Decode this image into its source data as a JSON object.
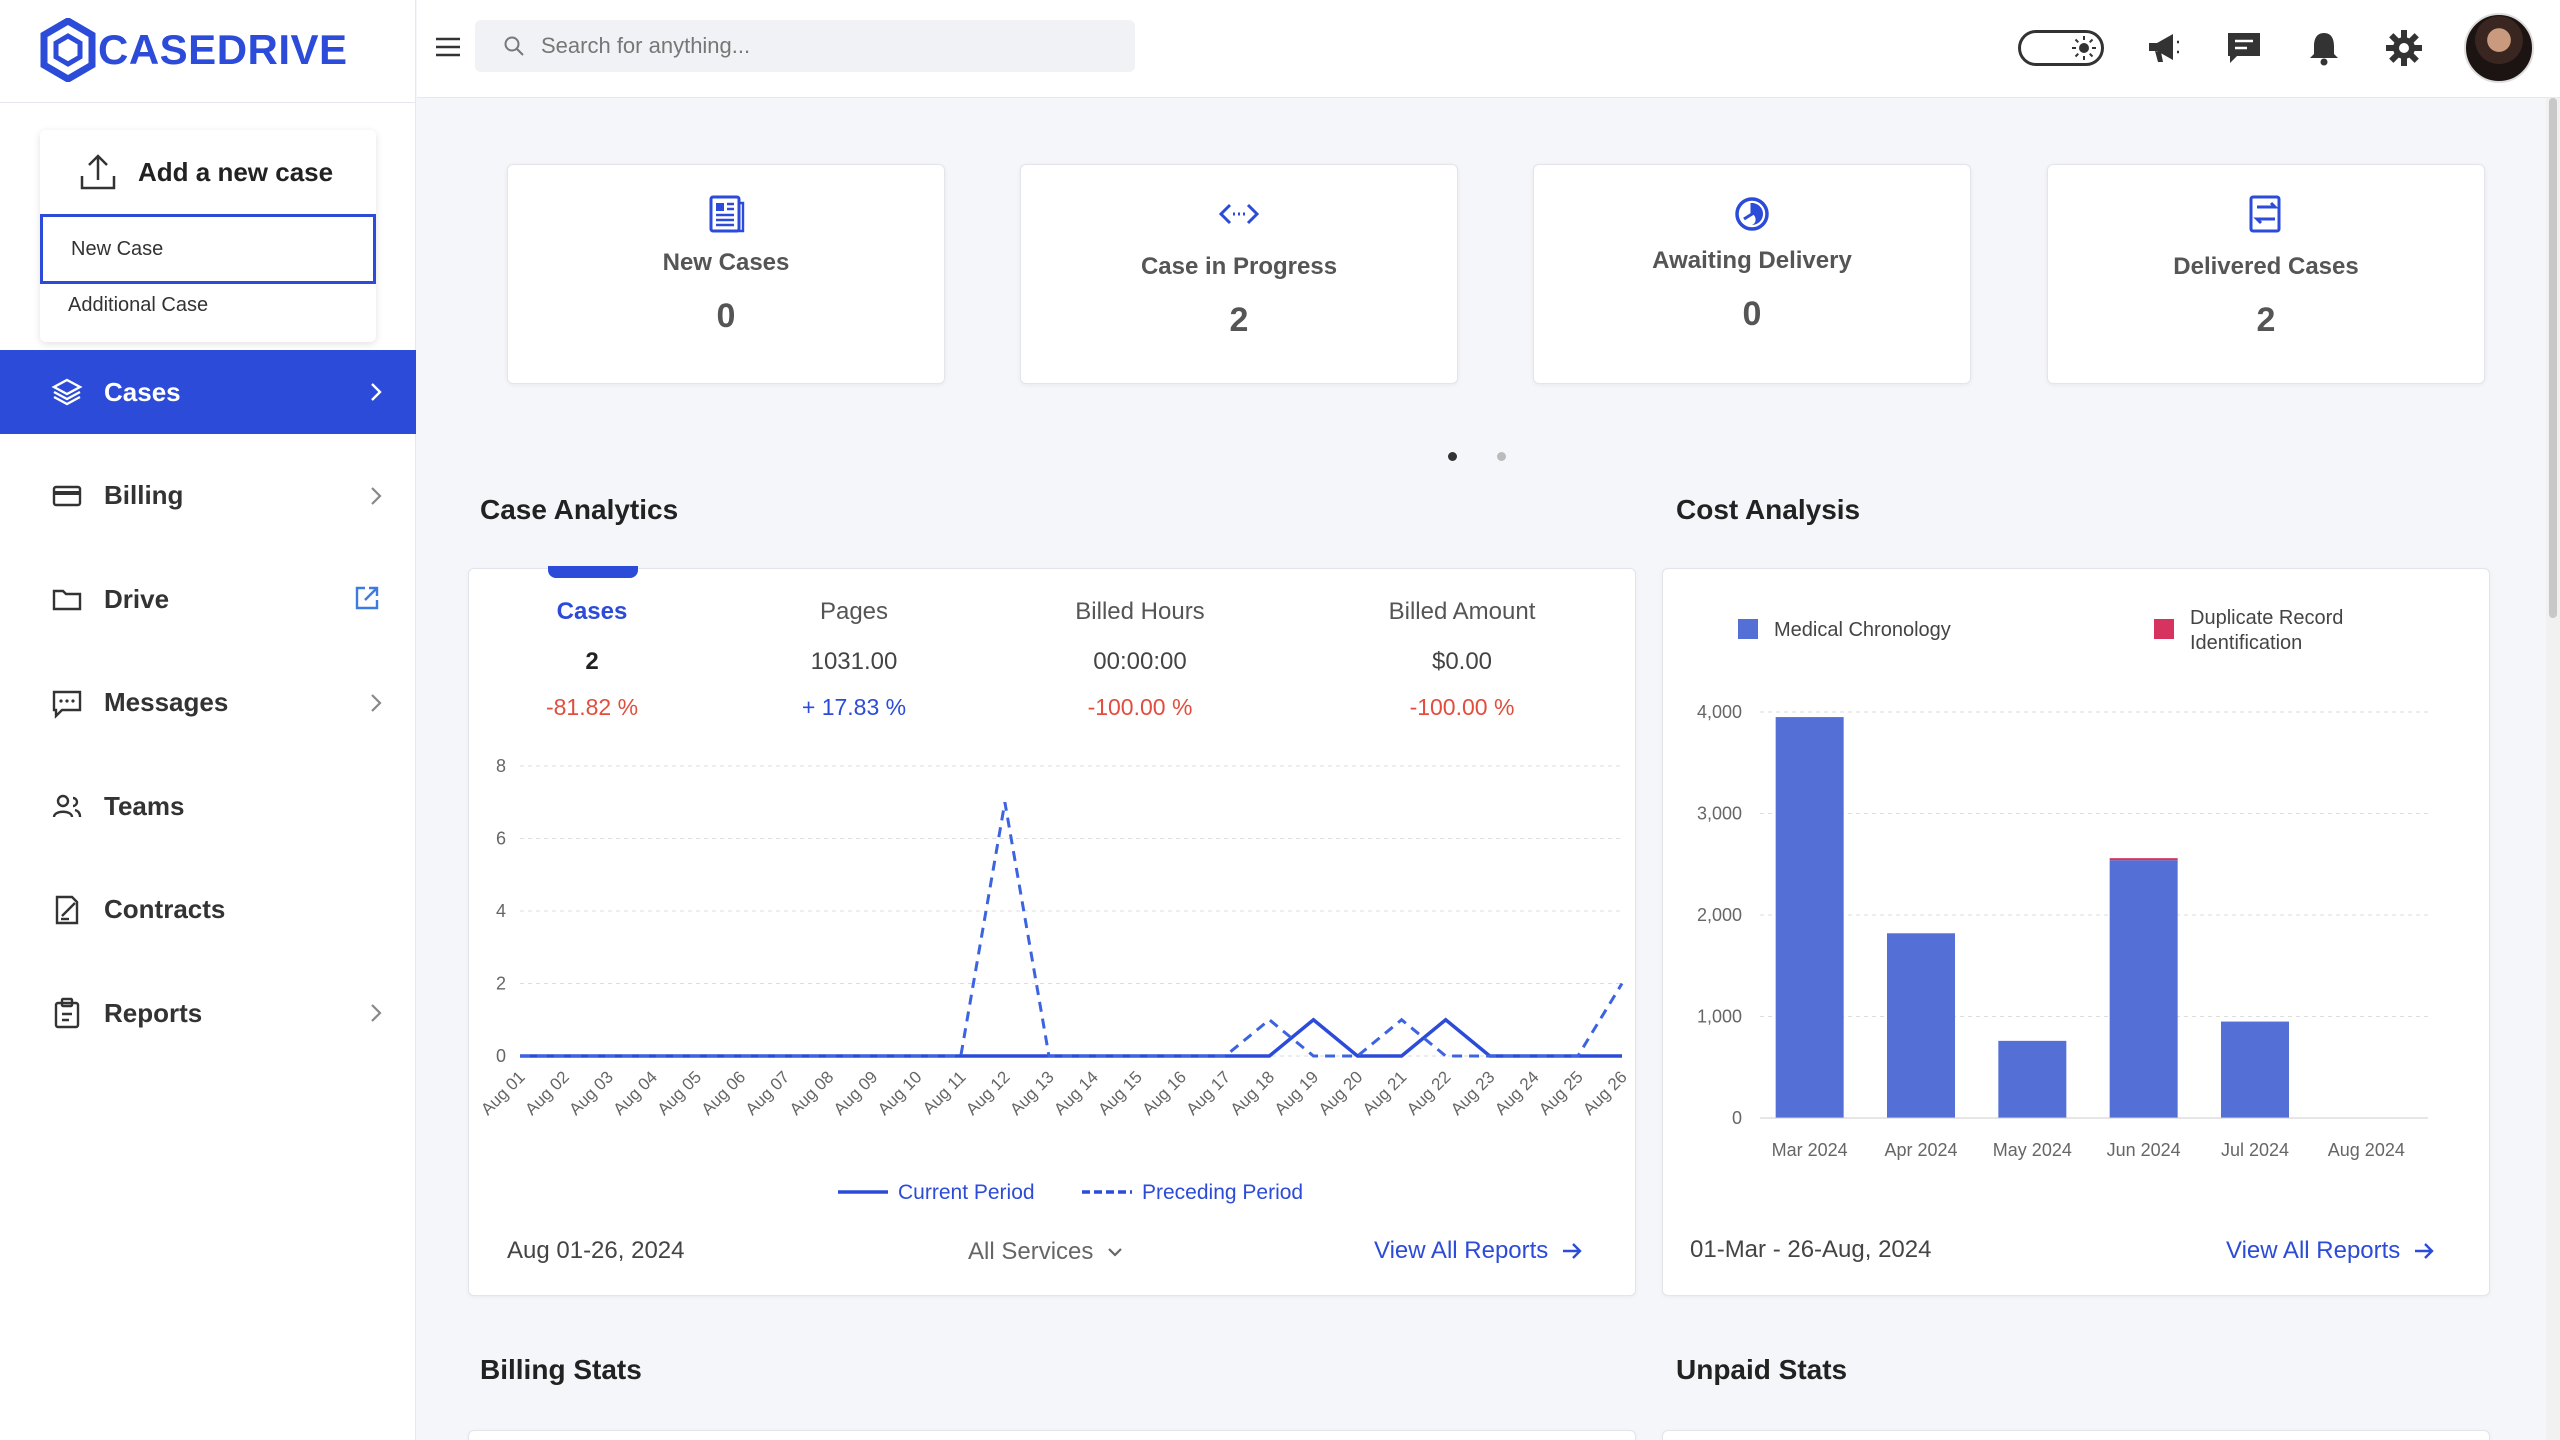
{
  "brand": {
    "name": "CASEDRIVE"
  },
  "add_case": {
    "title": "Add a new case",
    "options": [
      "New Case",
      "Additional Case"
    ]
  },
  "nav": [
    {
      "label": "Cases",
      "icon": "layers-icon",
      "active": true,
      "trail": "chevron"
    },
    {
      "label": "Billing",
      "icon": "card-icon",
      "active": false,
      "trail": "chevron"
    },
    {
      "label": "Drive",
      "icon": "folder-icon",
      "active": false,
      "trail": "external"
    },
    {
      "label": "Messages",
      "icon": "message-icon",
      "active": false,
      "trail": "chevron"
    },
    {
      "label": "Teams",
      "icon": "team-icon",
      "active": false,
      "trail": "none"
    },
    {
      "label": "Contracts",
      "icon": "contract-icon",
      "active": false,
      "trail": "none"
    },
    {
      "label": "Reports",
      "icon": "clipboard-icon",
      "active": false,
      "trail": "chevron"
    }
  ],
  "search": {
    "placeholder": "Search for anything..."
  },
  "stat_cards": [
    {
      "label": "New Cases",
      "value": "0",
      "icon": "document-icon"
    },
    {
      "label": "Case in Progress",
      "value": "2",
      "icon": "code-arrows-icon"
    },
    {
      "label": "Awaiting Delivery",
      "value": "0",
      "icon": "clock-half-icon"
    },
    {
      "label": "Delivered Cases",
      "value": "2",
      "icon": "transfer-icon"
    }
  ],
  "sections": {
    "case_analytics": "Case Analytics",
    "cost_analysis": "Cost Analysis",
    "billing_stats": "Billing Stats",
    "unpaid_stats": "Unpaid Stats"
  },
  "case_metrics": [
    {
      "label": "Cases",
      "value": "2",
      "change": "-81.82 %",
      "trend": "neg",
      "active": true
    },
    {
      "label": "Pages",
      "value": "1031.00",
      "change": "+ 17.83 %",
      "trend": "pos",
      "active": false
    },
    {
      "label": "Billed Hours",
      "value": "00:00:00",
      "change": "-100.00 %",
      "trend": "neg",
      "active": false
    },
    {
      "label": "Billed Amount",
      "value": "$0.00",
      "change": "-100.00 %",
      "trend": "neg",
      "active": false
    }
  ],
  "case_footer": {
    "range": "Aug 01-26, 2024",
    "filter": "All Services",
    "link": "View All Reports"
  },
  "cost_footer": {
    "range": "01-Mar - 26-Aug, 2024",
    "link": "View All Reports"
  },
  "colors": {
    "accent": "#2b4bd8",
    "bar": "#5470d6",
    "duplicate": "#d6335e",
    "negative": "#e14e3e"
  },
  "chart_data": [
    {
      "type": "line",
      "x": [
        "Aug 01",
        "Aug 02",
        "Aug 03",
        "Aug 04",
        "Aug 05",
        "Aug 06",
        "Aug 07",
        "Aug 08",
        "Aug 09",
        "Aug 10",
        "Aug 11",
        "Aug 12",
        "Aug 13",
        "Aug 14",
        "Aug 15",
        "Aug 16",
        "Aug 17",
        "Aug 18",
        "Aug 19",
        "Aug 20",
        "Aug 21",
        "Aug 22",
        "Aug 23",
        "Aug 24",
        "Aug 25",
        "Aug 26"
      ],
      "series": [
        {
          "name": "Current Period",
          "style": "solid",
          "values": [
            0,
            0,
            0,
            0,
            0,
            0,
            0,
            0,
            0,
            0,
            0,
            0,
            0,
            0,
            0,
            0,
            0,
            0,
            1,
            0,
            0,
            1,
            0,
            0,
            0,
            0
          ]
        },
        {
          "name": "Preceding Period",
          "style": "dashed",
          "values": [
            0,
            0,
            0,
            0,
            0,
            0,
            0,
            0,
            0,
            0,
            0,
            7,
            0,
            0,
            0,
            0,
            0,
            1,
            0,
            0,
            1,
            0,
            0,
            0,
            0,
            2
          ]
        }
      ],
      "ylim": [
        0,
        8
      ],
      "yticks": [
        0,
        2,
        4,
        6,
        8
      ],
      "grid": true,
      "legend": "bottom"
    },
    {
      "type": "bar",
      "categories": [
        "Mar 2024",
        "Apr 2024",
        "May 2024",
        "Jun 2024",
        "Jul 2024",
        "Aug 2024"
      ],
      "series": [
        {
          "name": "Medical Chronology",
          "values": [
            3950,
            1820,
            760,
            2540,
            950,
            0
          ]
        },
        {
          "name": "Duplicate Record Identification",
          "values": [
            0,
            0,
            0,
            20,
            0,
            0
          ]
        }
      ],
      "stacked": true,
      "ylim": [
        0,
        4000
      ],
      "yticks": [
        "0",
        "1,000",
        "2,000",
        "3,000",
        "4,000"
      ],
      "grid": true,
      "legend": "top"
    }
  ]
}
